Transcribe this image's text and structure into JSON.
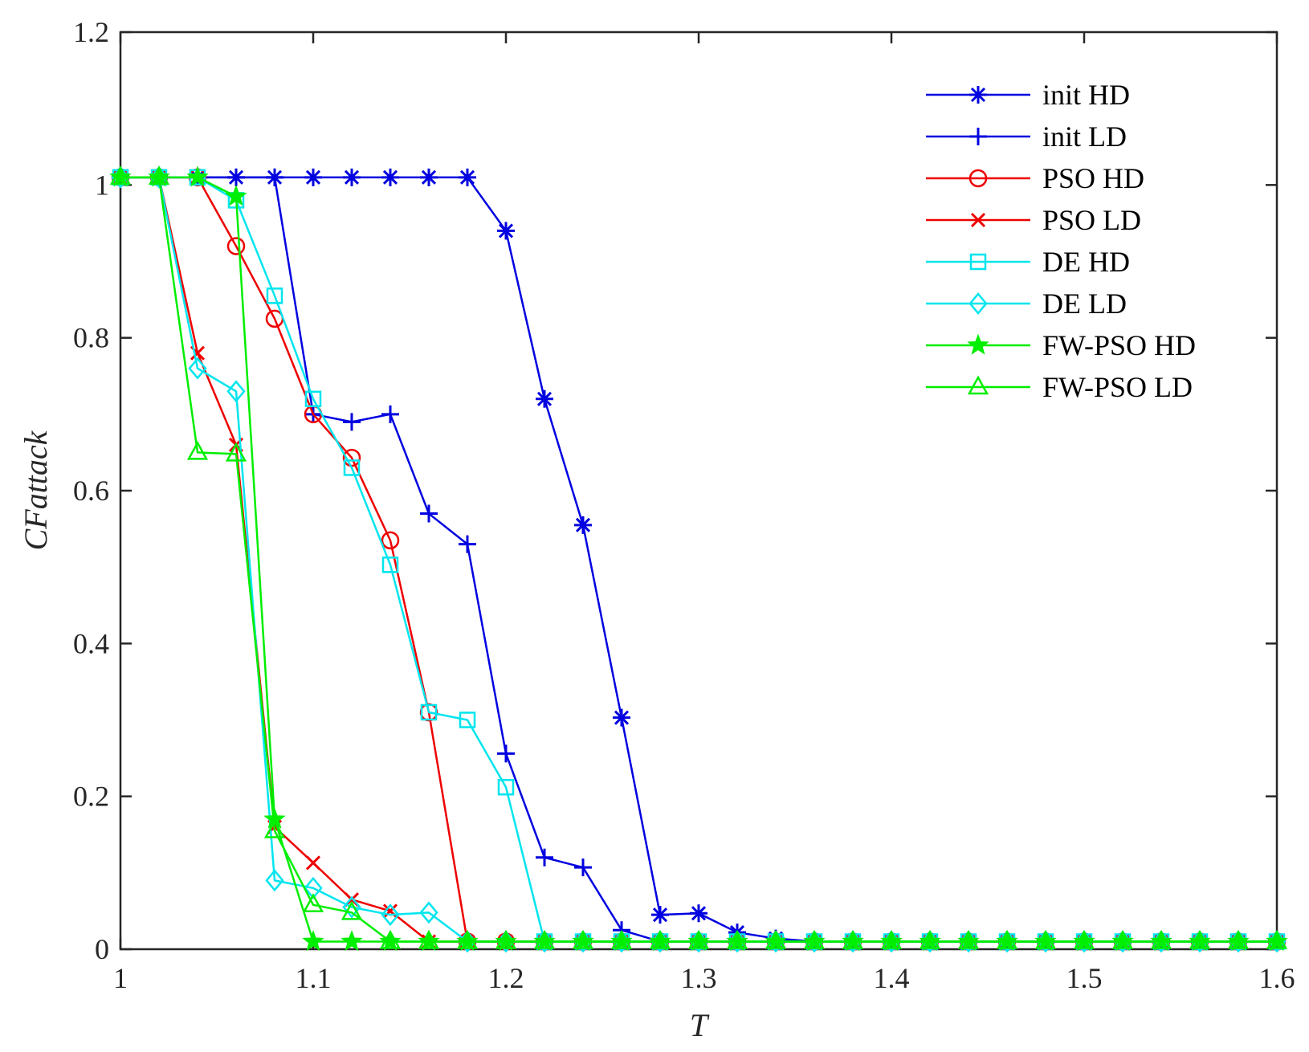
{
  "chart_data": {
    "type": "line",
    "title": "",
    "xlabel": "T",
    "ylabel": "CFattack",
    "xlim": [
      1,
      1.6
    ],
    "ylim": [
      0,
      1.2
    ],
    "xticks": [
      1,
      1.1,
      1.2,
      1.3,
      1.4,
      1.5,
      1.6
    ],
    "xtick_labels": [
      "1",
      "1.1",
      "1.2",
      "1.3",
      "1.4",
      "1.5",
      "1.6"
    ],
    "yticks": [
      0,
      0.2,
      0.4,
      0.6,
      0.8,
      1,
      1.2
    ],
    "ytick_labels": [
      "0",
      "0.2",
      "0.4",
      "0.6",
      "0.8",
      "1",
      "1.2"
    ],
    "legend_position": "top-right",
    "x": [
      1.0,
      1.02,
      1.04,
      1.06,
      1.08,
      1.1,
      1.12,
      1.14,
      1.16,
      1.18,
      1.2,
      1.22,
      1.24,
      1.26,
      1.28,
      1.3,
      1.32,
      1.34,
      1.36,
      1.38,
      1.4,
      1.42,
      1.44,
      1.46,
      1.48,
      1.5,
      1.52,
      1.54,
      1.56,
      1.58,
      1.6
    ],
    "series": [
      {
        "name": "init HD",
        "color": "#0000e0",
        "marker": "asterisk",
        "values": [
          1.01,
          1.01,
          1.01,
          1.01,
          1.01,
          1.01,
          1.01,
          1.01,
          1.01,
          1.01,
          0.94,
          0.72,
          0.555,
          0.303,
          0.045,
          0.047,
          0.022,
          0.014,
          0.01,
          0.01,
          0.01,
          0.01,
          0.01,
          0.01,
          0.01,
          0.01,
          0.01,
          0.01,
          0.01,
          0.01,
          0.01
        ]
      },
      {
        "name": "init LD",
        "color": "#0000e0",
        "marker": "plus",
        "values": [
          1.01,
          1.01,
          1.01,
          1.01,
          1.01,
          0.7,
          0.69,
          0.7,
          0.57,
          0.53,
          0.256,
          0.12,
          0.107,
          0.025,
          0.01,
          0.01,
          0.01,
          0.01,
          0.01,
          0.01,
          0.01,
          0.01,
          0.01,
          0.01,
          0.01,
          0.01,
          0.01,
          0.01,
          0.01,
          0.01,
          0.01
        ]
      },
      {
        "name": "PSO HD",
        "color": "#ee0000",
        "marker": "circle",
        "values": [
          1.01,
          1.01,
          1.01,
          0.92,
          0.825,
          0.7,
          0.643,
          0.535,
          0.31,
          0.01,
          0.01,
          0.01,
          0.01,
          0.01,
          0.01,
          0.01,
          0.01,
          0.01,
          0.01,
          0.01,
          0.01,
          0.01,
          0.01,
          0.01,
          0.01,
          0.01,
          0.01,
          0.01,
          0.01,
          0.01,
          0.01
        ]
      },
      {
        "name": "PSO LD",
        "color": "#ee0000",
        "marker": "x",
        "values": [
          1.01,
          1.01,
          0.78,
          0.66,
          0.16,
          0.113,
          0.065,
          0.05,
          0.01,
          0.01,
          0.01,
          0.01,
          0.01,
          0.01,
          0.01,
          0.01,
          0.01,
          0.01,
          0.01,
          0.01,
          0.01,
          0.01,
          0.01,
          0.01,
          0.01,
          0.01,
          0.01,
          0.01,
          0.01,
          0.01,
          0.01
        ]
      },
      {
        "name": "DE HD",
        "color": "#00e5ee",
        "marker": "square",
        "values": [
          1.01,
          1.01,
          1.01,
          0.98,
          0.855,
          0.72,
          0.63,
          0.503,
          0.31,
          0.3,
          0.212,
          0.01,
          0.01,
          0.01,
          0.01,
          0.01,
          0.01,
          0.01,
          0.01,
          0.01,
          0.01,
          0.01,
          0.01,
          0.01,
          0.01,
          0.01,
          0.01,
          0.01,
          0.01,
          0.01,
          0.01
        ]
      },
      {
        "name": "DE LD",
        "color": "#00e5ee",
        "marker": "diamond",
        "values": [
          1.01,
          1.01,
          0.76,
          0.73,
          0.09,
          0.08,
          0.055,
          0.045,
          0.048,
          0.01,
          0.01,
          0.01,
          0.01,
          0.01,
          0.01,
          0.01,
          0.01,
          0.01,
          0.01,
          0.01,
          0.01,
          0.01,
          0.01,
          0.01,
          0.01,
          0.01,
          0.01,
          0.01,
          0.01,
          0.01,
          0.01
        ]
      },
      {
        "name": "FW-PSO HD",
        "color": "#00ee00",
        "marker": "star",
        "values": [
          1.01,
          1.01,
          1.01,
          0.985,
          0.17,
          0.01,
          0.01,
          0.01,
          0.01,
          0.01,
          0.01,
          0.01,
          0.01,
          0.01,
          0.01,
          0.01,
          0.01,
          0.01,
          0.01,
          0.01,
          0.01,
          0.01,
          0.01,
          0.01,
          0.01,
          0.01,
          0.01,
          0.01,
          0.01,
          0.01,
          0.01
        ]
      },
      {
        "name": "FW-PSO LD",
        "color": "#00ee00",
        "marker": "triangle",
        "values": [
          1.01,
          1.01,
          0.65,
          0.648,
          0.155,
          0.058,
          0.048,
          0.01,
          0.01,
          0.01,
          0.01,
          0.01,
          0.01,
          0.01,
          0.01,
          0.01,
          0.01,
          0.01,
          0.01,
          0.01,
          0.01,
          0.01,
          0.01,
          0.01,
          0.01,
          0.01,
          0.01,
          0.01,
          0.01,
          0.01,
          0.01
        ]
      }
    ]
  }
}
